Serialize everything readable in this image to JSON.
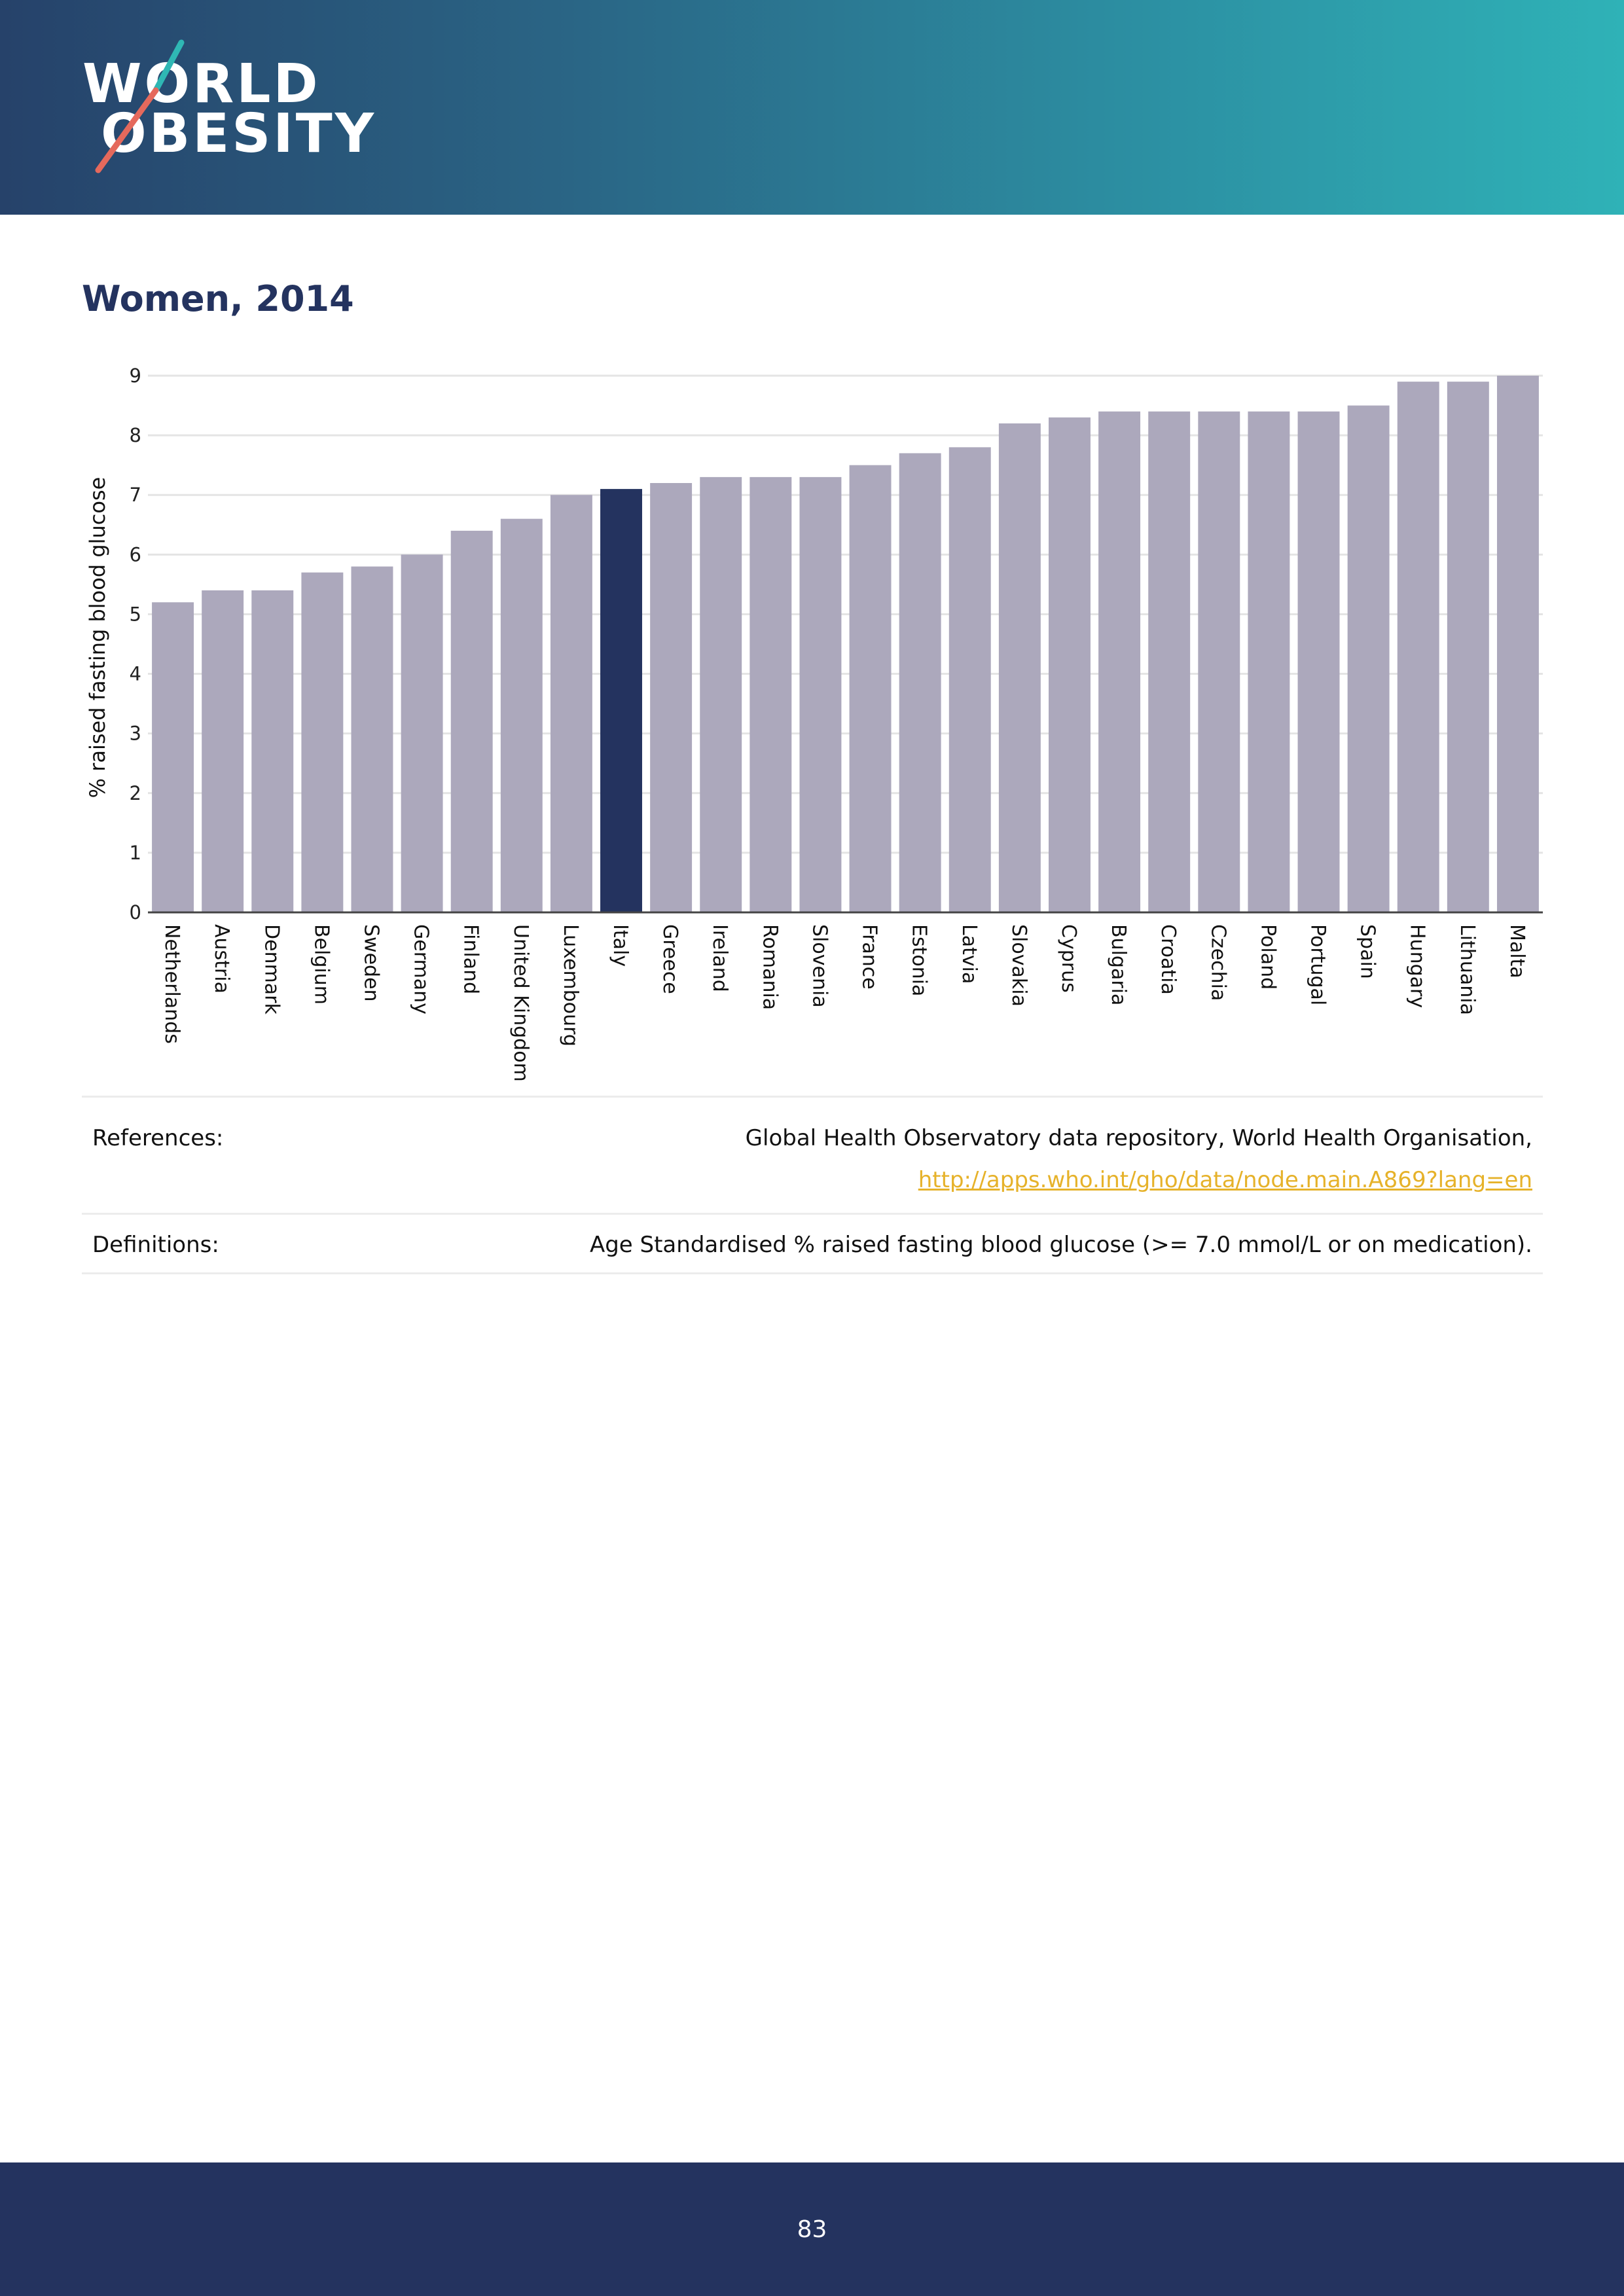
{
  "brand": {
    "line1": "WORLD",
    "line2": "OBESITY",
    "slash_color_teal": "#2fb7b4",
    "slash_color_red": "#e5695c"
  },
  "page_title": "Women, 2014",
  "chart_data": {
    "type": "bar",
    "title": "Women, 2014",
    "xlabel": "",
    "ylabel": "% raised fasting blood glucose",
    "ylim": [
      0,
      9
    ],
    "yticks": [
      0,
      1,
      2,
      3,
      4,
      5,
      6,
      7,
      8,
      9
    ],
    "grid": true,
    "highlight": "Italy",
    "bar_color": "#aca8bc",
    "highlight_color": "#24335f",
    "categories": [
      "Netherlands",
      "Austria",
      "Denmark",
      "Belgium",
      "Sweden",
      "Germany",
      "Finland",
      "United Kingdom",
      "Luxembourg",
      "Italy",
      "Greece",
      "Ireland",
      "Romania",
      "Slovenia",
      "France",
      "Estonia",
      "Latvia",
      "Slovakia",
      "Cyprus",
      "Bulgaria",
      "Croatia",
      "Czechia",
      "Poland",
      "Portugal",
      "Spain",
      "Hungary",
      "Lithuania",
      "Malta"
    ],
    "values": [
      5.2,
      5.4,
      5.4,
      5.7,
      5.8,
      6.0,
      6.4,
      6.6,
      7.0,
      7.1,
      7.2,
      7.3,
      7.3,
      7.3,
      7.5,
      7.7,
      7.8,
      8.2,
      8.3,
      8.4,
      8.4,
      8.4,
      8.4,
      8.4,
      8.5,
      8.9,
      8.9,
      9.0
    ]
  },
  "references": {
    "label": "References:",
    "text": "Global Health Observatory data repository, World Health Organisation,",
    "link": "http://apps.who.int/gho/data/node.main.A869?lang=en"
  },
  "definitions": {
    "label": "Definitions:",
    "text": "Age Standardised % raised fasting blood glucose (>= 7.0 mmol/L or on medication)."
  },
  "page_number": "83"
}
